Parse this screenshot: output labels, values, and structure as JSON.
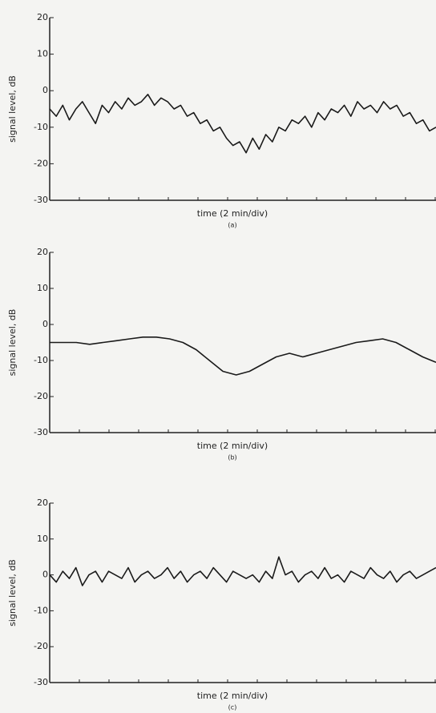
{
  "chart_data": [
    {
      "type": "line",
      "ylabel": "signal level, dB",
      "xlabel": "time (2 min/div)",
      "caption": "(a)",
      "ylim": [
        -30,
        20
      ],
      "yticks": [
        -30,
        -20,
        -10,
        0,
        10,
        20
      ],
      "color": "#1a1a1a",
      "categories": [
        null,
        null,
        null,
        null,
        null,
        null,
        null,
        null,
        null,
        null,
        null,
        null,
        null,
        null,
        null,
        null,
        null,
        null,
        null,
        null,
        null,
        null,
        null,
        null,
        null,
        null,
        null,
        null,
        null,
        null,
        null,
        null,
        null,
        null,
        null,
        null,
        null,
        null,
        null,
        null,
        null,
        null,
        null,
        null,
        null,
        null,
        null,
        null,
        null,
        null,
        null,
        null,
        null,
        null,
        null,
        null,
        null,
        null,
        null,
        null
      ],
      "values": [
        -5,
        -7,
        -4,
        -8,
        -5,
        -3,
        -6,
        -9,
        -4,
        -6,
        -3,
        -5,
        -2,
        -4,
        -3,
        -1,
        -4,
        -2,
        -3,
        -5,
        -4,
        -7,
        -6,
        -9,
        -8,
        -11,
        -10,
        -13,
        -15,
        -14,
        -17,
        -13,
        -16,
        -12,
        -14,
        -10,
        -11,
        -8,
        -9,
        -7,
        -10,
        -6,
        -8,
        -5,
        -6,
        -4,
        -7,
        -3,
        -5,
        -4,
        -6,
        -3,
        -5,
        -4,
        -7,
        -6,
        -9,
        -8,
        -11,
        -10
      ]
    },
    {
      "type": "line",
      "ylabel": "signal level, dB",
      "xlabel": "time (2 min/div)",
      "caption": "(b)",
      "ylim": [
        -30,
        20
      ],
      "yticks": [
        -30,
        -20,
        -10,
        0,
        10,
        20
      ],
      "color": "#1a1a1a",
      "categories": [
        null,
        null,
        null,
        null,
        null,
        null,
        null,
        null,
        null,
        null,
        null,
        null,
        null,
        null,
        null,
        null,
        null,
        null,
        null,
        null,
        null,
        null,
        null,
        null,
        null,
        null,
        null,
        null,
        null,
        null
      ],
      "values": [
        -5,
        -5,
        -5,
        -5.5,
        -5,
        -4.5,
        -4,
        -3.5,
        -3.5,
        -4,
        -5,
        -7,
        -10,
        -13,
        -14,
        -13,
        -11,
        -9,
        -8,
        -9,
        -8,
        -7,
        -6,
        -5,
        -4.5,
        -4,
        -5,
        -7,
        -9,
        -10.5
      ]
    },
    {
      "type": "line",
      "ylabel": "signal level, dB",
      "xlabel": "time (2 min/div)",
      "caption": "(c)",
      "ylim": [
        -30,
        20
      ],
      "yticks": [
        -30,
        -20,
        -10,
        0,
        10,
        20
      ],
      "color": "#1a1a1a",
      "categories": [
        null,
        null,
        null,
        null,
        null,
        null,
        null,
        null,
        null,
        null,
        null,
        null,
        null,
        null,
        null,
        null,
        null,
        null,
        null,
        null,
        null,
        null,
        null,
        null,
        null,
        null,
        null,
        null,
        null,
        null,
        null,
        null,
        null,
        null,
        null,
        null,
        null,
        null,
        null,
        null,
        null,
        null,
        null,
        null,
        null,
        null,
        null,
        null,
        null,
        null,
        null,
        null,
        null,
        null,
        null,
        null,
        null,
        null,
        null,
        null
      ],
      "values": [
        0,
        -2,
        1,
        -1,
        2,
        -3,
        0,
        1,
        -2,
        1,
        0,
        -1,
        2,
        -2,
        0,
        1,
        -1,
        0,
        2,
        -1,
        1,
        -2,
        0,
        1,
        -1,
        2,
        0,
        -2,
        1,
        0,
        -1,
        0,
        -2,
        1,
        -1,
        5,
        0,
        1,
        -2,
        0,
        1,
        -1,
        2,
        -1,
        0,
        -2,
        1,
        0,
        -1,
        2,
        0,
        -1,
        1,
        -2,
        0,
        1,
        -1,
        0,
        1,
        2
      ]
    }
  ]
}
